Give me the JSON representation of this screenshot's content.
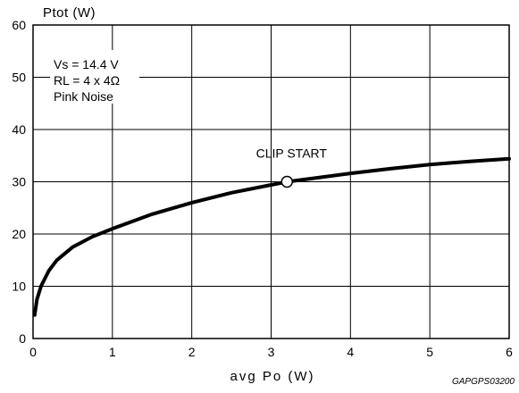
{
  "chart_data": {
    "type": "line",
    "ylabel": "Ptot (W)",
    "xlabel": "avg Po (W)",
    "xlim": [
      0,
      6
    ],
    "ylim": [
      0,
      60
    ],
    "x_ticks": [
      "0",
      "1",
      "2",
      "3",
      "4",
      "5",
      "6"
    ],
    "y_ticks": [
      "0",
      "10",
      "20",
      "30",
      "40",
      "50",
      "60"
    ],
    "grid": true,
    "conditions": [
      "Vs = 14.4 V",
      "RL = 4 x 4Ω",
      "Pink Noise"
    ],
    "series": [
      {
        "x": [
          0.02,
          0.05,
          0.1,
          0.2,
          0.3,
          0.5,
          0.75,
          1.0,
          1.5,
          2.0,
          2.5,
          3.0,
          3.2,
          3.5,
          4.0,
          4.5,
          5.0,
          5.5,
          6.0
        ],
        "y": [
          4.5,
          7.5,
          10.0,
          13.0,
          15.0,
          17.5,
          19.5,
          21.0,
          23.8,
          26.0,
          27.9,
          29.4,
          30.0,
          30.6,
          31.6,
          32.5,
          33.3,
          33.9,
          34.4
        ]
      }
    ],
    "markers": [
      {
        "x": 3.2,
        "y": 30.0,
        "label": "CLIP START"
      }
    ],
    "figure_id": "GAPGPS03200"
  }
}
